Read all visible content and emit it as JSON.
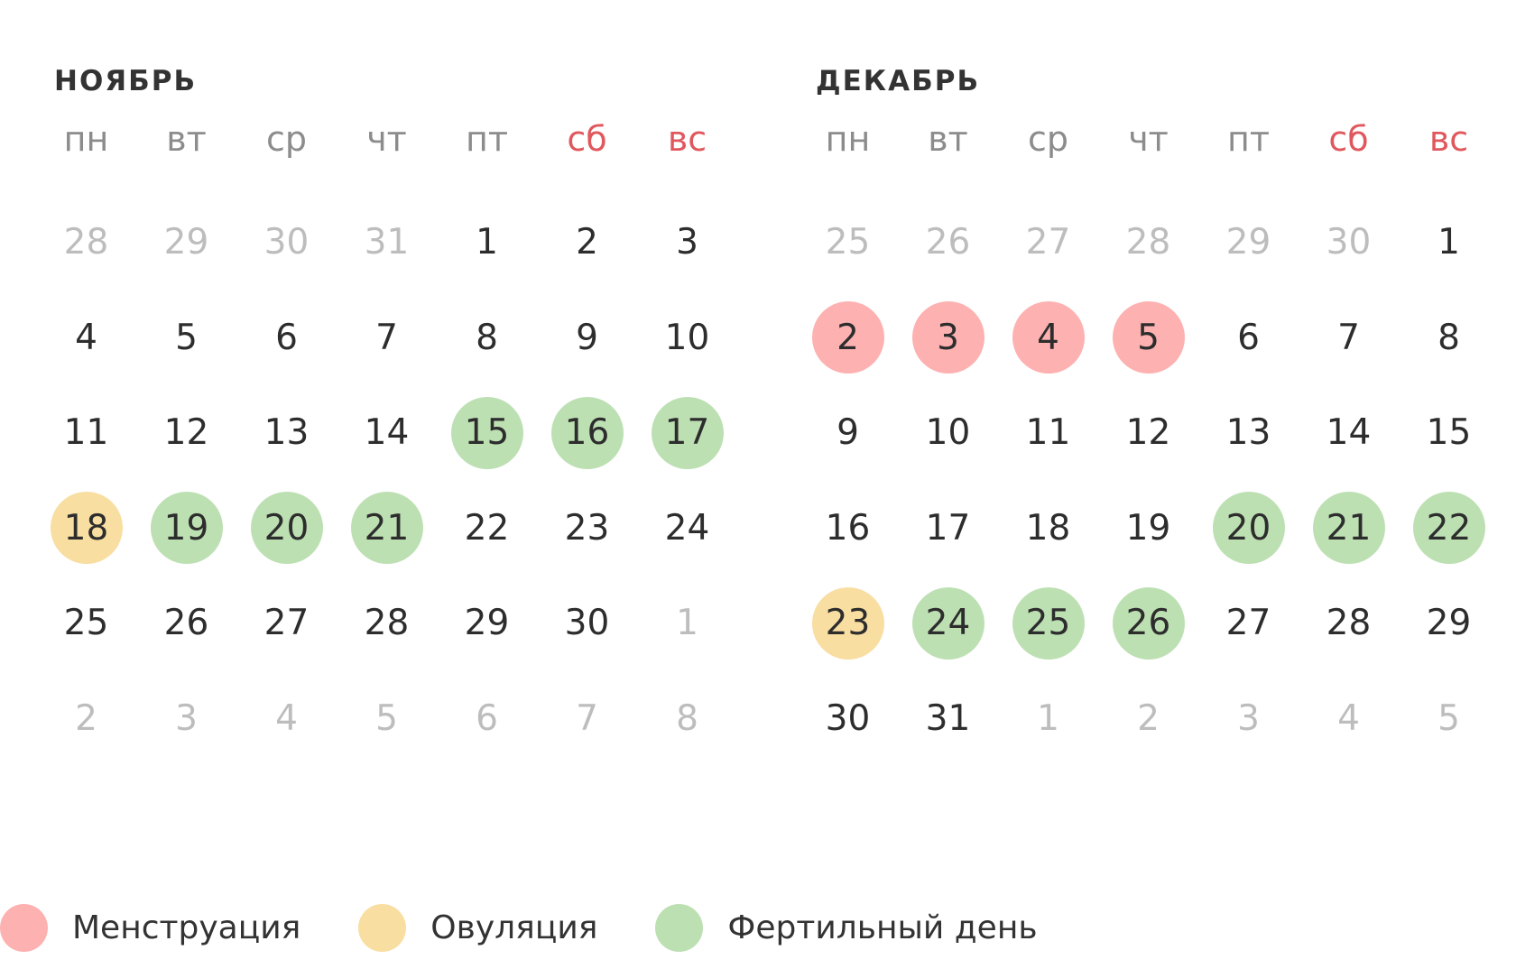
{
  "weekdays": [
    {
      "label": "пн",
      "weekend": false
    },
    {
      "label": "вт",
      "weekend": false
    },
    {
      "label": "ср",
      "weekend": false
    },
    {
      "label": "чт",
      "weekend": false
    },
    {
      "label": "пт",
      "weekend": false
    },
    {
      "label": "сб",
      "weekend": true
    },
    {
      "label": "вс",
      "weekend": true
    }
  ],
  "colors": {
    "weekend": "#e0585d",
    "menstruation": "#fdb1b1",
    "ovulation": "#f9dea2",
    "fertile": "#bde0b3",
    "other_month_text": "#bdbdbd",
    "day_text": "#2d2d2d"
  },
  "months": [
    {
      "title": "НОЯБРЬ",
      "days": [
        {
          "n": "28",
          "other": true
        },
        {
          "n": "29",
          "other": true
        },
        {
          "n": "30",
          "other": true
        },
        {
          "n": "31",
          "other": true
        },
        {
          "n": "1"
        },
        {
          "n": "2"
        },
        {
          "n": "3"
        },
        {
          "n": "4"
        },
        {
          "n": "5"
        },
        {
          "n": "6"
        },
        {
          "n": "7"
        },
        {
          "n": "8"
        },
        {
          "n": "9"
        },
        {
          "n": "10"
        },
        {
          "n": "11"
        },
        {
          "n": "12"
        },
        {
          "n": "13"
        },
        {
          "n": "14"
        },
        {
          "n": "15",
          "type": "fertile"
        },
        {
          "n": "16",
          "type": "fertile"
        },
        {
          "n": "17",
          "type": "fertile"
        },
        {
          "n": "18",
          "type": "ovulation"
        },
        {
          "n": "19",
          "type": "fertile"
        },
        {
          "n": "20",
          "type": "fertile"
        },
        {
          "n": "21",
          "type": "fertile"
        },
        {
          "n": "22"
        },
        {
          "n": "23"
        },
        {
          "n": "24"
        },
        {
          "n": "25"
        },
        {
          "n": "26"
        },
        {
          "n": "27"
        },
        {
          "n": "28"
        },
        {
          "n": "29"
        },
        {
          "n": "30"
        },
        {
          "n": "1",
          "other": true
        },
        {
          "n": "2",
          "other": true
        },
        {
          "n": "3",
          "other": true
        },
        {
          "n": "4",
          "other": true
        },
        {
          "n": "5",
          "other": true
        },
        {
          "n": "6",
          "other": true
        },
        {
          "n": "7",
          "other": true
        },
        {
          "n": "8",
          "other": true
        }
      ]
    },
    {
      "title": "ДЕКАБРЬ",
      "days": [
        {
          "n": "25",
          "other": true
        },
        {
          "n": "26",
          "other": true
        },
        {
          "n": "27",
          "other": true
        },
        {
          "n": "28",
          "other": true
        },
        {
          "n": "29",
          "other": true
        },
        {
          "n": "30",
          "other": true
        },
        {
          "n": "1"
        },
        {
          "n": "2",
          "type": "menstruation"
        },
        {
          "n": "3",
          "type": "menstruation"
        },
        {
          "n": "4",
          "type": "menstruation"
        },
        {
          "n": "5",
          "type": "menstruation"
        },
        {
          "n": "6"
        },
        {
          "n": "7"
        },
        {
          "n": "8"
        },
        {
          "n": "9"
        },
        {
          "n": "10"
        },
        {
          "n": "11"
        },
        {
          "n": "12"
        },
        {
          "n": "13"
        },
        {
          "n": "14"
        },
        {
          "n": "15"
        },
        {
          "n": "16"
        },
        {
          "n": "17"
        },
        {
          "n": "18"
        },
        {
          "n": "19"
        },
        {
          "n": "20",
          "type": "fertile"
        },
        {
          "n": "21",
          "type": "fertile"
        },
        {
          "n": "22",
          "type": "fertile"
        },
        {
          "n": "23",
          "type": "ovulation"
        },
        {
          "n": "24",
          "type": "fertile"
        },
        {
          "n": "25",
          "type": "fertile"
        },
        {
          "n": "26",
          "type": "fertile"
        },
        {
          "n": "27"
        },
        {
          "n": "28"
        },
        {
          "n": "29"
        },
        {
          "n": "30"
        },
        {
          "n": "31"
        },
        {
          "n": "1",
          "other": true
        },
        {
          "n": "2",
          "other": true
        },
        {
          "n": "3",
          "other": true
        },
        {
          "n": "4",
          "other": true
        },
        {
          "n": "5",
          "other": true
        }
      ]
    }
  ],
  "legend": [
    {
      "key": "menstruation",
      "label": "Менструация"
    },
    {
      "key": "ovulation",
      "label": "Овуляция"
    },
    {
      "key": "fertile",
      "label": "Фертильный день"
    }
  ]
}
